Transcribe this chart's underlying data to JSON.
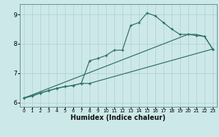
{
  "xlabel": "Humidex (Indice chaleur)",
  "ylabel": "",
  "bg_color": "#cde8e8",
  "line_color": "#2d7068",
  "xlim": [
    -0.5,
    23.5
  ],
  "ylim": [
    5.85,
    9.35
  ],
  "xticks": [
    0,
    1,
    2,
    3,
    4,
    5,
    6,
    7,
    8,
    9,
    10,
    11,
    12,
    13,
    14,
    15,
    16,
    17,
    18,
    19,
    20,
    21,
    22,
    23
  ],
  "yticks": [
    6,
    7,
    8,
    9
  ],
  "grid_color": "#aecece",
  "marker": "+",
  "curve1_x": [
    0,
    1,
    2,
    3,
    4,
    5,
    6,
    7,
    8,
    9,
    10,
    11,
    12,
    13,
    14,
    15,
    16,
    17,
    18,
    19,
    20,
    21,
    22,
    23
  ],
  "curve1_y": [
    6.15,
    6.22,
    6.32,
    6.4,
    6.48,
    6.54,
    6.58,
    6.65,
    7.42,
    7.5,
    7.6,
    7.78,
    7.78,
    8.62,
    8.72,
    9.05,
    8.95,
    8.72,
    8.5,
    8.32,
    8.32,
    8.28,
    8.25,
    7.82
  ],
  "curve2_x": [
    0,
    1,
    2,
    3,
    4,
    5,
    6,
    7,
    8,
    23
  ],
  "curve2_y": [
    6.15,
    6.22,
    6.32,
    6.4,
    6.48,
    6.54,
    6.58,
    6.65,
    6.65,
    7.82
  ],
  "curve3_x": [
    0,
    20,
    21,
    22,
    23
  ],
  "curve3_y": [
    6.15,
    8.32,
    8.32,
    8.25,
    7.82
  ]
}
